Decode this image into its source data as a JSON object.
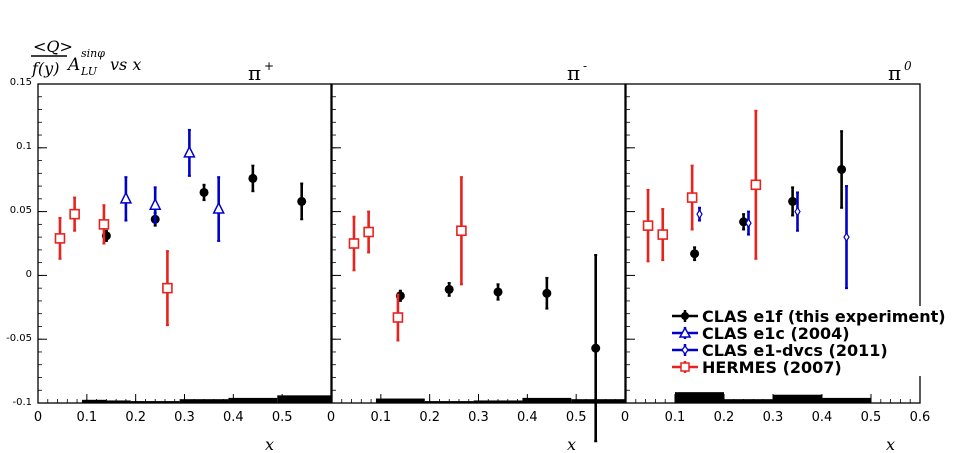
{
  "chart_data": {
    "type": "scatter",
    "ylabel": {
      "numerator": "<Q>",
      "denominator": "f(y)",
      "symbol": "A",
      "subscript": "LU",
      "superscript": "sinφ",
      "suffix": "vs x"
    },
    "xlabel": "x",
    "ylim": [
      -0.1,
      0.15
    ],
    "yticks": [
      "0.15",
      "0.1",
      "0.05",
      "0",
      "-0.05",
      "-0.1"
    ],
    "grid": false,
    "legend_position": "bottom-right of third panel",
    "legend": [
      {
        "label": "CLAS e1f (this experiment)",
        "color": "#000000",
        "marker": "filled-circle"
      },
      {
        "label": "CLAS e1c (2004)",
        "color": "#0000cc",
        "marker": "open-triangle"
      },
      {
        "label": "CLAS e1-dvcs (2011)",
        "color": "#0000cc",
        "marker": "open-diamond"
      },
      {
        "label": "HERMES (2007)",
        "color": "#e8231e",
        "marker": "open-square"
      }
    ],
    "panels": [
      {
        "title_base": "π",
        "title_sup": "+",
        "title_sup_style": "normal",
        "xlim": [
          0,
          0.6
        ],
        "xticks": [
          "0",
          "0.1",
          "0.2",
          "0.3",
          "0.4",
          "0.5",
          "0"
        ],
        "series": [
          {
            "name": "CLAS e1f (this experiment)",
            "points": [
              {
                "x": 0.14,
                "y": 0.031,
                "err": 0.004
              },
              {
                "x": 0.24,
                "y": 0.044,
                "err": 0.005
              },
              {
                "x": 0.34,
                "y": 0.065,
                "err": 0.006
              },
              {
                "x": 0.44,
                "y": 0.076,
                "err": 0.01
              },
              {
                "x": 0.54,
                "y": 0.058,
                "err": 0.014
              }
            ]
          },
          {
            "name": "CLAS e1c (2004)",
            "points": [
              {
                "x": 0.18,
                "y": 0.06,
                "err": 0.017
              },
              {
                "x": 0.24,
                "y": 0.055,
                "err": 0.014
              },
              {
                "x": 0.31,
                "y": 0.096,
                "err": 0.018
              },
              {
                "x": 0.37,
                "y": 0.052,
                "err": 0.025
              }
            ]
          },
          {
            "name": "HERMES (2007)",
            "points": [
              {
                "x": 0.045,
                "y": 0.029,
                "err": 0.016
              },
              {
                "x": 0.075,
                "y": 0.048,
                "err": 0.013
              },
              {
                "x": 0.135,
                "y": 0.04,
                "err": 0.015
              },
              {
                "x": 0.265,
                "y": -0.01,
                "err": 0.029
              }
            ]
          }
        ],
        "systematics": [
          {
            "x0": 0.09,
            "x1": 0.14,
            "h": 0.0025
          },
          {
            "x0": 0.14,
            "x1": 0.19,
            "h": 0.002
          },
          {
            "x0": 0.19,
            "x1": 0.29,
            "h": 0.0015
          },
          {
            "x0": 0.29,
            "x1": 0.39,
            "h": 0.003
          },
          {
            "x0": 0.39,
            "x1": 0.49,
            "h": 0.004
          },
          {
            "x0": 0.49,
            "x1": 0.6,
            "h": 0.006
          }
        ]
      },
      {
        "title_base": "π",
        "title_sup": "-",
        "title_sup_style": "normal",
        "xlim": [
          0,
          0.6
        ],
        "xticks": [
          "0.1",
          "0.2",
          "0.3",
          "0.4",
          "0.5",
          "0"
        ],
        "tick_start": 1,
        "series": [
          {
            "name": "CLAS e1f (this experiment)",
            "points": [
              {
                "x": 0.14,
                "y": -0.016,
                "err": 0.004
              },
              {
                "x": 0.24,
                "y": -0.011,
                "err": 0.005
              },
              {
                "x": 0.34,
                "y": -0.013,
                "err": 0.006
              },
              {
                "x": 0.44,
                "y": -0.014,
                "err": 0.012
              },
              {
                "x": 0.54,
                "y": -0.057,
                "err": 0.073
              }
            ]
          },
          {
            "name": "HERMES (2007)",
            "points": [
              {
                "x": 0.045,
                "y": 0.025,
                "err": 0.021
              },
              {
                "x": 0.075,
                "y": 0.034,
                "err": 0.016
              },
              {
                "x": 0.135,
                "y": -0.033,
                "err": 0.018
              },
              {
                "x": 0.265,
                "y": 0.035,
                "err": 0.042
              }
            ]
          }
        ],
        "systematics": [
          {
            "x0": 0.09,
            "x1": 0.19,
            "h": 0.0035
          },
          {
            "x0": 0.19,
            "x1": 0.29,
            "h": 0.0015
          },
          {
            "x0": 0.29,
            "x1": 0.39,
            "h": 0.002
          },
          {
            "x0": 0.39,
            "x1": 0.49,
            "h": 0.004
          },
          {
            "x0": 0.49,
            "x1": 0.6,
            "h": 0.003
          }
        ]
      },
      {
        "title_base": "π",
        "title_sup": "0",
        "title_sup_style": "italic",
        "xlim": [
          0,
          0.6
        ],
        "xticks": [
          "0.1",
          "0.2",
          "0.3",
          "0.4",
          "0.5",
          "0.6"
        ],
        "tick_start": 1,
        "series": [
          {
            "name": "CLAS e1f (this experiment)",
            "points": [
              {
                "x": 0.14,
                "y": 0.017,
                "err": 0.005
              },
              {
                "x": 0.24,
                "y": 0.042,
                "err": 0.006
              },
              {
                "x": 0.34,
                "y": 0.058,
                "err": 0.011
              },
              {
                "x": 0.44,
                "y": 0.083,
                "err": 0.03
              }
            ]
          },
          {
            "name": "CLAS e1-dvcs (2011)",
            "points": [
              {
                "x": 0.15,
                "y": 0.048,
                "err": 0.005
              },
              {
                "x": 0.25,
                "y": 0.041,
                "err": 0.009
              },
              {
                "x": 0.35,
                "y": 0.05,
                "err": 0.015
              },
              {
                "x": 0.45,
                "y": 0.03,
                "err": 0.04
              }
            ]
          },
          {
            "name": "HERMES (2007)",
            "points": [
              {
                "x": 0.045,
                "y": 0.039,
                "err": 0.028
              },
              {
                "x": 0.075,
                "y": 0.032,
                "err": 0.02
              },
              {
                "x": 0.135,
                "y": 0.061,
                "err": 0.025
              },
              {
                "x": 0.265,
                "y": 0.071,
                "err": 0.058
              }
            ]
          }
        ],
        "systematics": [
          {
            "x0": 0.1,
            "x1": 0.2,
            "h": 0.0085
          },
          {
            "x0": 0.2,
            "x1": 0.3,
            "h": 0.003
          },
          {
            "x0": 0.3,
            "x1": 0.4,
            "h": 0.0065
          },
          {
            "x0": 0.4,
            "x1": 0.5,
            "h": 0.004
          }
        ]
      }
    ]
  }
}
